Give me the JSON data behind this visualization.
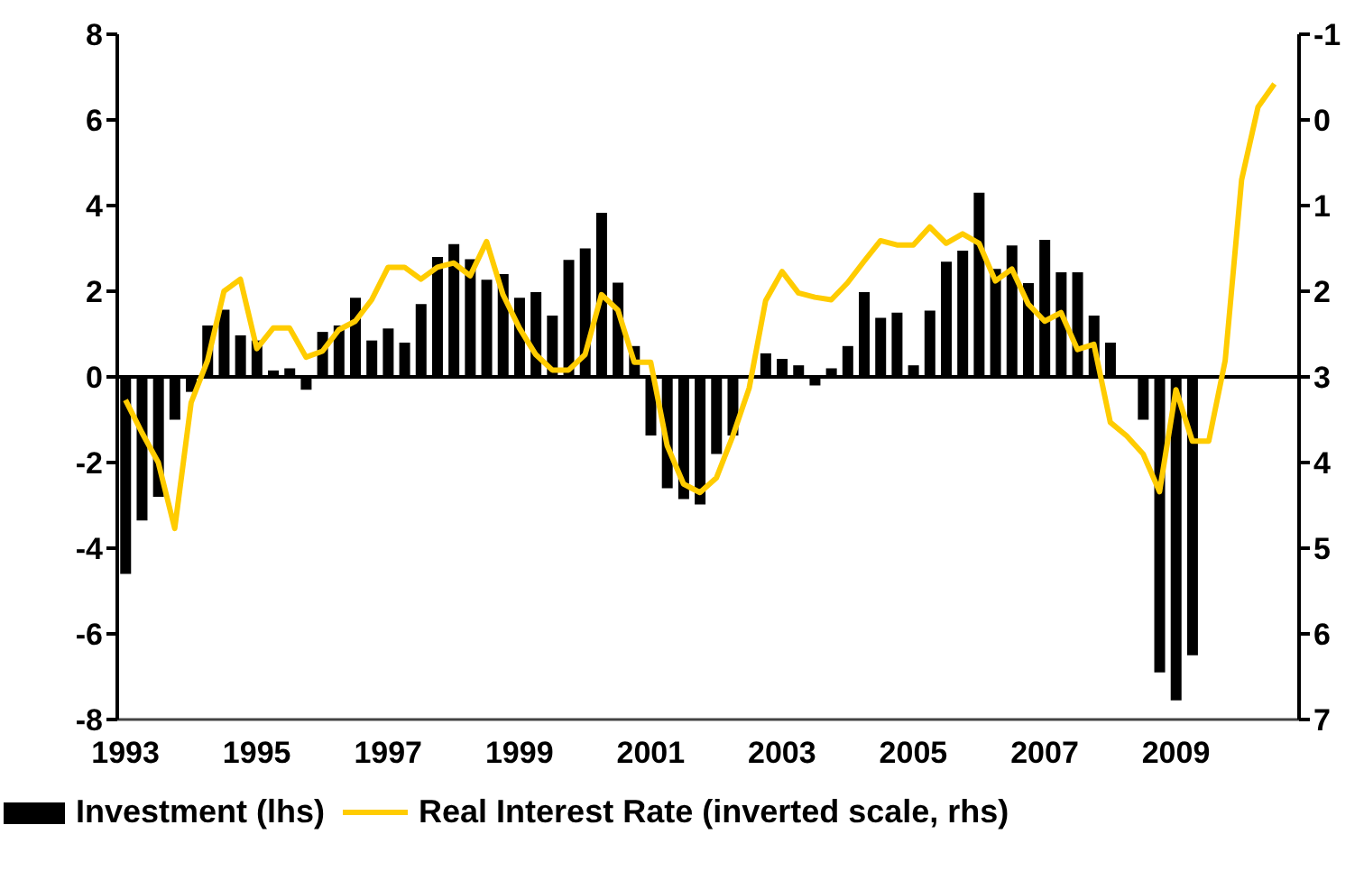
{
  "chart_data": {
    "type": "bar",
    "categories": [
      "1993",
      null,
      null,
      null,
      null,
      null,
      null,
      null,
      "1995",
      null,
      null,
      null,
      null,
      null,
      null,
      null,
      "1997",
      null,
      null,
      null,
      null,
      null,
      null,
      null,
      "1999",
      null,
      null,
      null,
      null,
      null,
      null,
      null,
      "2001",
      null,
      null,
      null,
      null,
      null,
      null,
      null,
      "2003",
      null,
      null,
      null,
      null,
      null,
      null,
      null,
      "2005",
      null,
      null,
      null,
      null,
      null,
      null,
      null,
      "2007",
      null,
      null,
      null,
      null,
      null,
      null,
      null,
      "2009",
      null,
      null,
      null,
      null,
      null,
      null,
      null
    ],
    "series": [
      {
        "name": "Investment (lhs)",
        "color": "#000000",
        "values": [
          -4.6,
          -3.35,
          -2.8,
          -1.0,
          -0.35,
          1.2,
          1.57,
          0.97,
          0.85,
          0.15,
          0.2,
          -0.3,
          1.05,
          1.2,
          1.85,
          0.85,
          1.13,
          0.8,
          1.7,
          2.8,
          3.1,
          2.75,
          2.27,
          2.4,
          1.85,
          1.98,
          1.43,
          2.73,
          3.0,
          3.83,
          2.2,
          0.72,
          -1.37,
          -2.6,
          -2.85,
          -2.98,
          -1.8,
          -1.37,
          0,
          0.55,
          0.42,
          0.27,
          -0.2,
          0.2,
          0.72,
          1.98,
          1.38,
          1.5,
          0.27,
          1.55,
          2.69,
          2.95,
          4.3,
          2.52,
          3.07,
          2.19,
          3.2,
          2.44,
          2.44,
          1.43,
          0.8,
          0,
          -1.0,
          -6.9,
          -7.55,
          -6.5,
          null,
          null,
          null,
          null,
          null,
          null
        ]
      },
      {
        "name": "Real Interest Rate (inverted scale, rhs)",
        "type": "line",
        "axis": "y2",
        "color": "#ffcc00",
        "values": [
          3.27,
          3.65,
          4.0,
          4.77,
          3.3,
          2.81,
          2.0,
          1.86,
          2.67,
          2.43,
          2.43,
          2.77,
          2.7,
          2.45,
          2.35,
          2.1,
          1.72,
          1.72,
          1.86,
          1.72,
          1.67,
          1.82,
          1.42,
          2.04,
          2.43,
          2.74,
          2.92,
          2.92,
          2.74,
          2.04,
          2.22,
          2.83,
          2.83,
          3.8,
          4.25,
          4.35,
          4.18,
          3.69,
          3.13,
          2.11,
          1.77,
          2.02,
          2.07,
          2.1,
          1.9,
          1.65,
          1.41,
          1.46,
          1.46,
          1.25,
          1.44,
          1.33,
          1.44,
          1.88,
          1.74,
          2.15,
          2.35,
          2.25,
          2.68,
          2.62,
          3.53,
          3.69,
          3.9,
          4.34,
          3.15,
          3.75,
          3.75,
          2.81,
          0.7,
          -0.15,
          -0.42,
          null
        ]
      }
    ],
    "ylim": [
      -8,
      8
    ],
    "yticks": [
      -8,
      -6,
      -4,
      -2,
      0,
      2,
      4,
      6,
      8
    ],
    "y2lim": [
      7,
      -1
    ],
    "y2ticks": [
      -1,
      0,
      1,
      2,
      3,
      4,
      5,
      6,
      7
    ],
    "legend": "bottom"
  }
}
